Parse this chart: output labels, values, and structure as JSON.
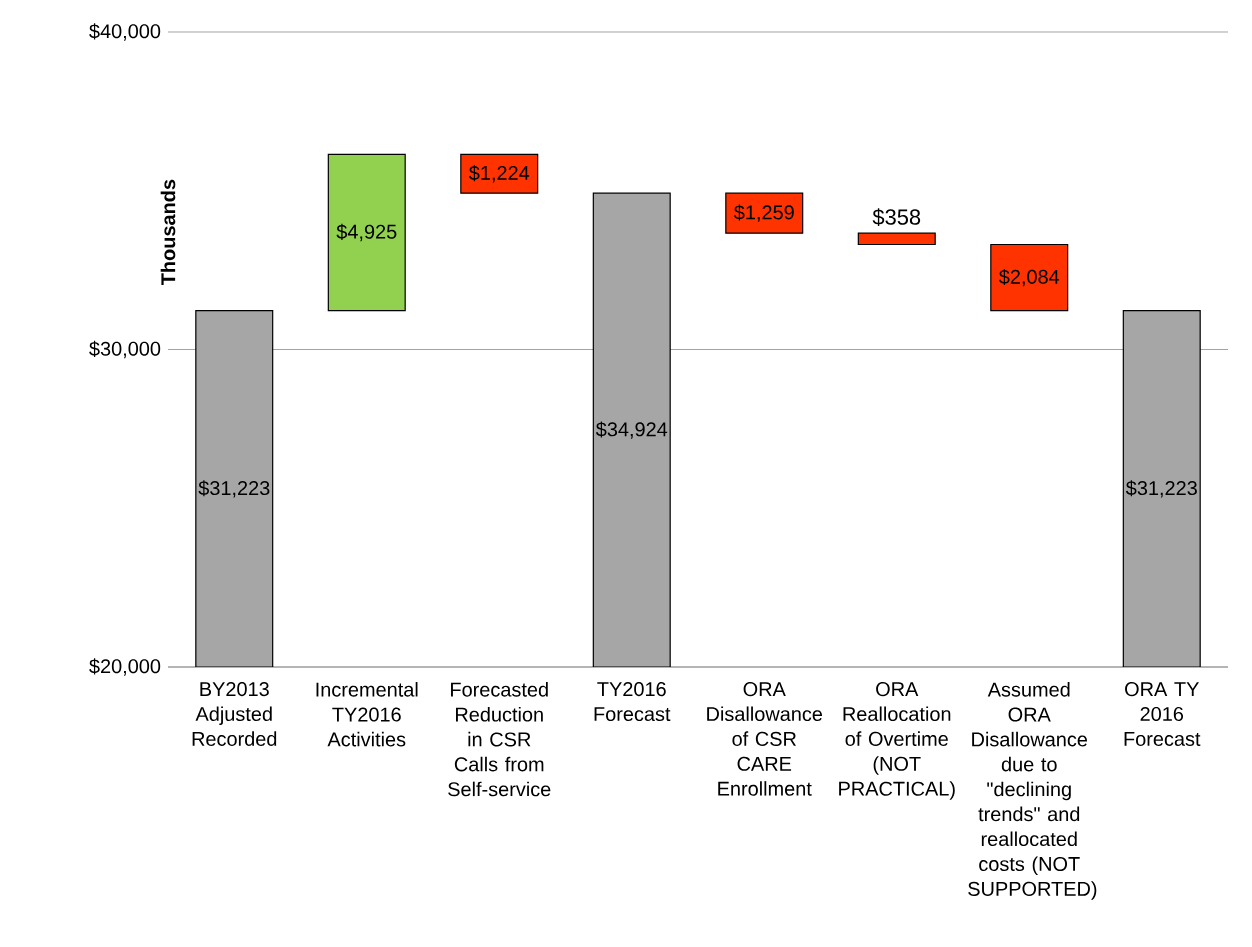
{
  "chart_data": {
    "type": "bar",
    "ylabel": "Thousands",
    "categories": [
      "BY2013 Adjusted Recorded",
      "Incremental TY2016 Activities",
      "Forecasted Reduction in CSR Calls from Self-service",
      "TY2016 Forecast",
      "ORA Disallowance of CSR CARE Enrollment",
      "ORA Reallocation of Overtime (NOT PRACTICAL)",
      "Assumed ORA Disallowance due to \"declining trends\" and reallocated costs (NOT SUPPORTED)",
      "ORA TY 2016 Forecast"
    ],
    "values": [
      31223,
      4925,
      -1224,
      34924,
      -1259,
      -358,
      -2084,
      31223
    ],
    "base": [
      null,
      31223,
      36148,
      null,
      34924,
      33665,
      33307,
      null
    ],
    "colors": [
      "#a6a6a6",
      "#92d050",
      "#ff3300",
      "#a6a6a6",
      "#ff3300",
      "#ff3300",
      "#ff3300",
      "#a6a6a6"
    ],
    "value_labels": [
      "$31,223",
      "$4,925",
      "$1,224",
      "$34,924",
      "$1,259",
      "$358",
      "$2,084",
      "$31,223"
    ],
    "ylim": [
      20000,
      40000
    ],
    "yticks": [
      {
        "value": 20000,
        "label": "$20,000"
      },
      {
        "value": 30000,
        "label": "$30,000"
      },
      {
        "value": 40000,
        "label": "$40,000"
      }
    ],
    "grid": "y"
  }
}
